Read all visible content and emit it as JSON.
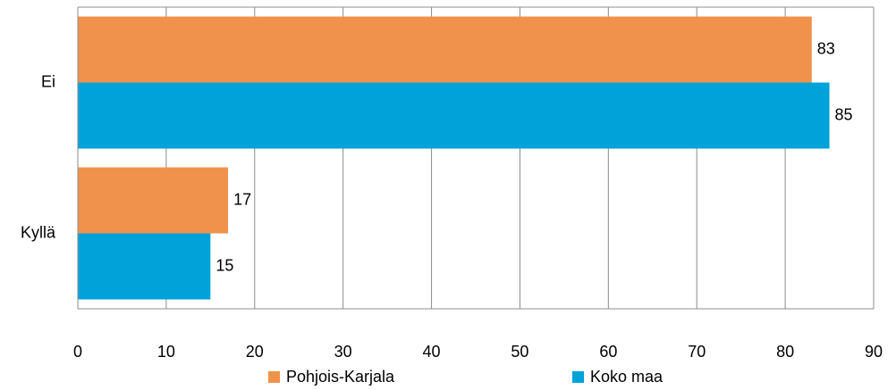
{
  "chart_data": {
    "type": "hbar",
    "categories": [
      "Ei",
      "Kyllä"
    ],
    "series": [
      {
        "name": "Pohjois-Karjala",
        "color": "#f0924c",
        "values": [
          83,
          17
        ]
      },
      {
        "name": "Koko maa",
        "color": "#00a2da",
        "values": [
          85,
          15
        ]
      }
    ],
    "xlim": [
      0,
      90
    ],
    "xticks": [
      0,
      10,
      20,
      30,
      40,
      50,
      60,
      70,
      80,
      90
    ],
    "grid": true,
    "legend": "bottom"
  }
}
